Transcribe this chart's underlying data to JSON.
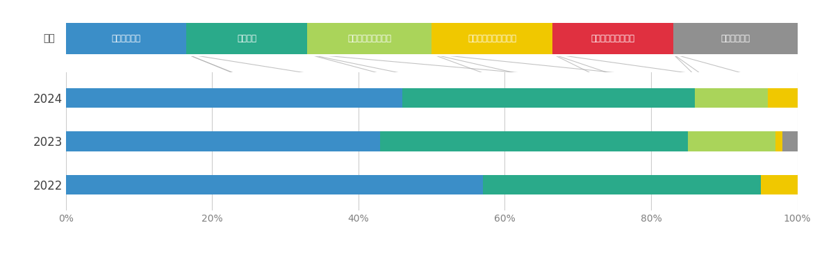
{
  "years": [
    "2024",
    "2023",
    "2022"
  ],
  "colors": [
    "#3b8ec8",
    "#2aaa8a",
    "#aad45a",
    "#f0c800",
    "#e03040",
    "#909090"
  ],
  "legend_labels": [
    "全くその通り",
    "その通り",
    "どちらとも言えない",
    "あまり当てはまらない",
    "全く当てはまらない",
    "該当事例なし"
  ],
  "data": {
    "2024": [
      46,
      40,
      10,
      4,
      0,
      0
    ],
    "2023": [
      43,
      42,
      12,
      1,
      0,
      2
    ],
    "2022": [
      57,
      38,
      0,
      5,
      0,
      0
    ]
  },
  "legend_widths": [
    16.5,
    16.5,
    17,
    16.5,
    16.5,
    17
  ],
  "bg_color": "#ffffff",
  "grid_color": "#cccccc",
  "bar_height": 0.45,
  "figsize": [
    11.83,
    3.7
  ]
}
